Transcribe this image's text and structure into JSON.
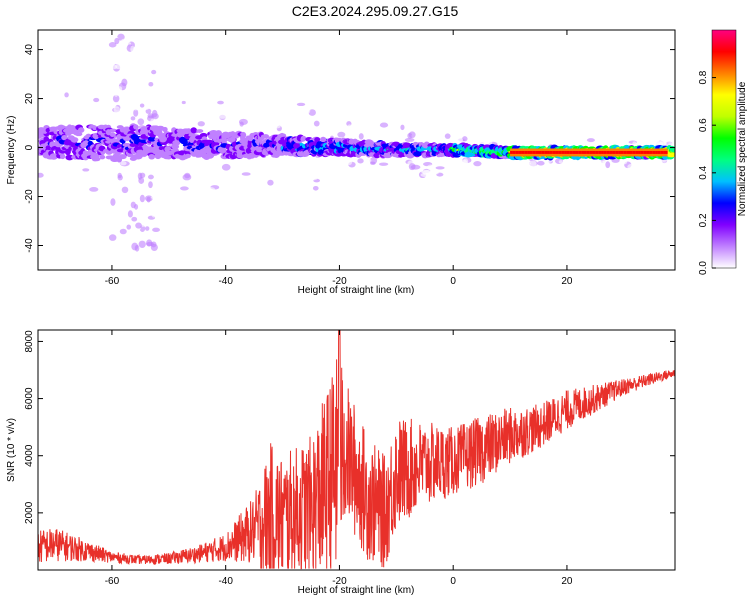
{
  "title": "C2E3.2024.295.09.27.G15",
  "chart_data": [
    {
      "type": "heatmap",
      "xlabel": "Height of straight line (km)",
      "ylabel": "Frequency (Hz)",
      "xlim": [
        -73,
        39
      ],
      "ylim": [
        -50,
        48
      ],
      "xticks": [
        -60,
        -40,
        -20,
        0,
        20
      ],
      "xtick_labels": [
        "-60",
        "-40",
        "-20",
        "0",
        "20"
      ],
      "yticks": [
        -40,
        -20,
        0,
        20,
        40
      ],
      "ytick_labels": [
        "-40",
        "-20",
        "0",
        "20",
        "40"
      ],
      "colorbar": {
        "label": "Normalized spectral amplitude",
        "range": [
          0,
          1
        ],
        "ticks": [
          0.0,
          0.2,
          0.4,
          0.6,
          0.8
        ],
        "tick_labels": [
          "0.0",
          "0.2",
          "0.4",
          "0.6",
          "0.8"
        ],
        "colors": [
          "#ffffff",
          "#c080ff",
          "#8000ff",
          "#0000ff",
          "#00c0ff",
          "#00ff80",
          "#00ff00",
          "#c0ff00",
          "#ffff00",
          "#ff8000",
          "#ff0000",
          "#ff0080"
        ]
      },
      "band": {
        "description_points_x": [
          -73,
          -60,
          -50,
          -40,
          -30,
          -20,
          -10,
          0,
          10,
          20,
          30,
          38
        ],
        "center_freq": [
          2,
          2,
          2,
          1,
          1,
          0,
          -1,
          -1,
          -2,
          -2,
          -2,
          -2
        ],
        "half_width": [
          6,
          7,
          6,
          5,
          4,
          3,
          2.5,
          2,
          2,
          2,
          2,
          2
        ]
      }
    },
    {
      "type": "line",
      "xlabel": "Height of straight line (km)",
      "ylabel": "SNR (10 * v/v)",
      "xlim": [
        -73,
        39
      ],
      "ylim": [
        0,
        8400
      ],
      "xticks": [
        -60,
        -40,
        -20,
        0,
        20
      ],
      "xtick_labels": [
        "-60",
        "-40",
        "-20",
        "0",
        "20"
      ],
      "yticks": [
        2000,
        4000,
        6000,
        8000
      ],
      "ytick_labels": [
        "2000",
        "4000",
        "6000",
        "8000"
      ],
      "series": [
        {
          "color": "#e8302a",
          "x": [
            -73,
            -70,
            -65,
            -60,
            -55,
            -50,
            -45,
            -40,
            -35,
            -32,
            -30,
            -25,
            -22,
            -20,
            -19,
            -15,
            -12,
            -10,
            -5,
            0,
            5,
            10,
            15,
            20,
            25,
            30,
            35,
            39
          ],
          "y_mean": [
            800,
            900,
            700,
            450,
            350,
            400,
            550,
            800,
            1400,
            2000,
            1800,
            2200,
            3000,
            3800,
            4200,
            2500,
            2000,
            3400,
            3700,
            3800,
            4200,
            4700,
            5000,
            5600,
            6000,
            6400,
            6700,
            6900
          ],
          "y_spread": [
            600,
            600,
            400,
            200,
            150,
            200,
            300,
            500,
            1200,
            2500,
            2200,
            2500,
            3500,
            4000,
            2500,
            2200,
            2000,
            2000,
            1500,
            1200,
            1200,
            1000,
            800,
            700,
            500,
            300,
            200,
            150
          ],
          "peak": {
            "x": -20,
            "y": 8400
          }
        }
      ]
    }
  ]
}
